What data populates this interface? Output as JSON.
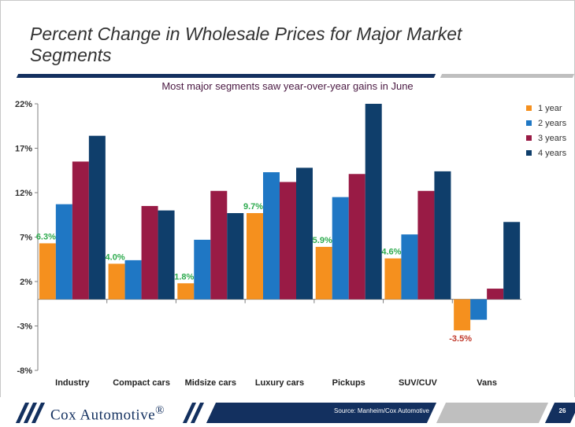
{
  "slide": {
    "title": "Percent Change in Wholesale Prices for Major Market Segments",
    "subtitle": "Most major segments saw year-over-year gains in June",
    "source": "Source: Manheim/Cox Automotive",
    "page_number": "26",
    "logo_text": "Cox Automotive",
    "logo_mark": "®"
  },
  "colors": {
    "navy": "#13305f",
    "grey": "#bfbfbf",
    "subtitle": "#4a1942",
    "label_positive": "#2eab4f",
    "label_negative": "#c0392b"
  },
  "chart_data": {
    "type": "bar",
    "title": "Most major segments saw year-over-year gains in June",
    "categories": [
      "Industry",
      "Compact cars",
      "Midsize cars",
      "Luxury cars",
      "Pickups",
      "SUV/CUV",
      "Vans"
    ],
    "series": [
      {
        "name": "1 year",
        "color": "#f5901e",
        "values": [
          6.3,
          4.0,
          1.8,
          9.7,
          5.9,
          4.6,
          -3.5
        ]
      },
      {
        "name": "2 years",
        "color": "#1f77c4",
        "values": [
          10.7,
          4.4,
          6.7,
          14.3,
          11.5,
          7.3,
          -2.3
        ]
      },
      {
        "name": "3 years",
        "color": "#991b45",
        "values": [
          15.5,
          10.5,
          12.2,
          13.2,
          14.1,
          12.2,
          1.2
        ]
      },
      {
        "name": "4 years",
        "color": "#0f3e6b",
        "values": [
          18.4,
          10.0,
          9.7,
          14.8,
          22.0,
          14.4,
          8.7
        ]
      }
    ],
    "data_labels": {
      "series": "1 year",
      "texts": [
        "6.3%",
        "4.0%",
        "1.8%",
        "9.7%",
        "5.9%",
        "4.6%",
        "-3.5%"
      ]
    },
    "yaxis": {
      "ticks": [
        22,
        17,
        12,
        7,
        2,
        -3,
        -8
      ],
      "tick_labels": [
        "22%",
        "17%",
        "12%",
        "7%",
        "2%",
        "-3%",
        "-8%"
      ],
      "ylim": [
        -8,
        22
      ]
    },
    "xlabel": "",
    "ylabel": "",
    "grid": false,
    "legend_position": "top-right"
  }
}
